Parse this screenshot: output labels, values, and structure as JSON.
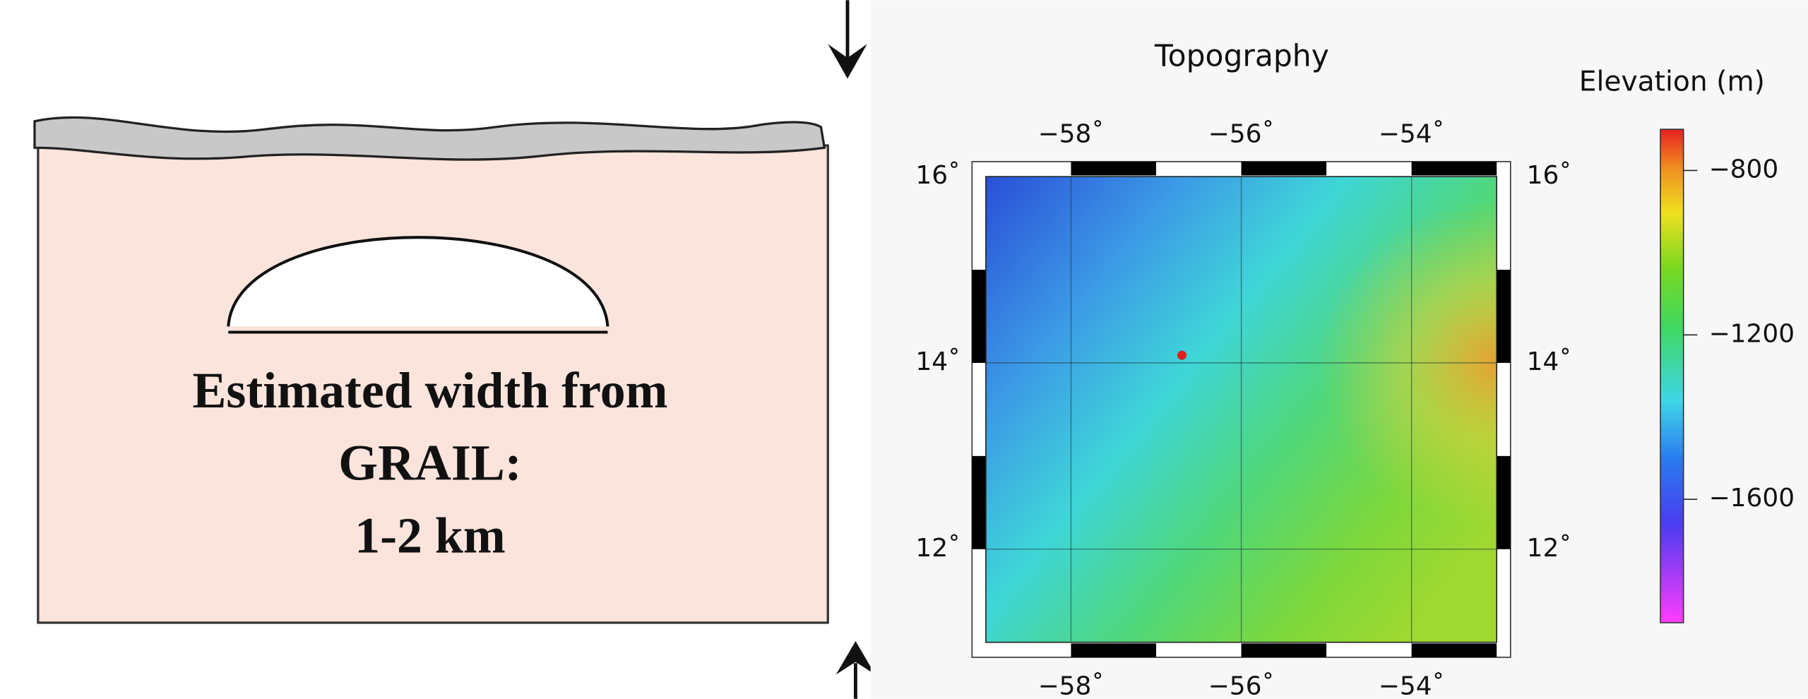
{
  "left_panel": {
    "text_lines": [
      "Estimated width from",
      "GRAIL:",
      "1-2 km"
    ]
  },
  "map": {
    "title": "Topography",
    "xlim": [
      -59,
      -53
    ],
    "ylim": [
      11,
      16
    ],
    "xticks": [
      {
        "value": -58,
        "label": "−58˚"
      },
      {
        "value": -56,
        "label": "−56˚"
      },
      {
        "value": -54,
        "label": "−54˚"
      }
    ],
    "yticks": [
      {
        "value": 16,
        "label": "16˚"
      },
      {
        "value": 14,
        "label": "14˚"
      },
      {
        "value": 12,
        "label": "12˚"
      }
    ]
  },
  "colorbar": {
    "label": "Elevation (m)",
    "lim": [
      -1900,
      -700
    ],
    "ticks": [
      {
        "value": -800,
        "label": "−800"
      },
      {
        "value": -1200,
        "label": "−1200"
      },
      {
        "value": -1600,
        "label": "−1600"
      }
    ]
  }
}
